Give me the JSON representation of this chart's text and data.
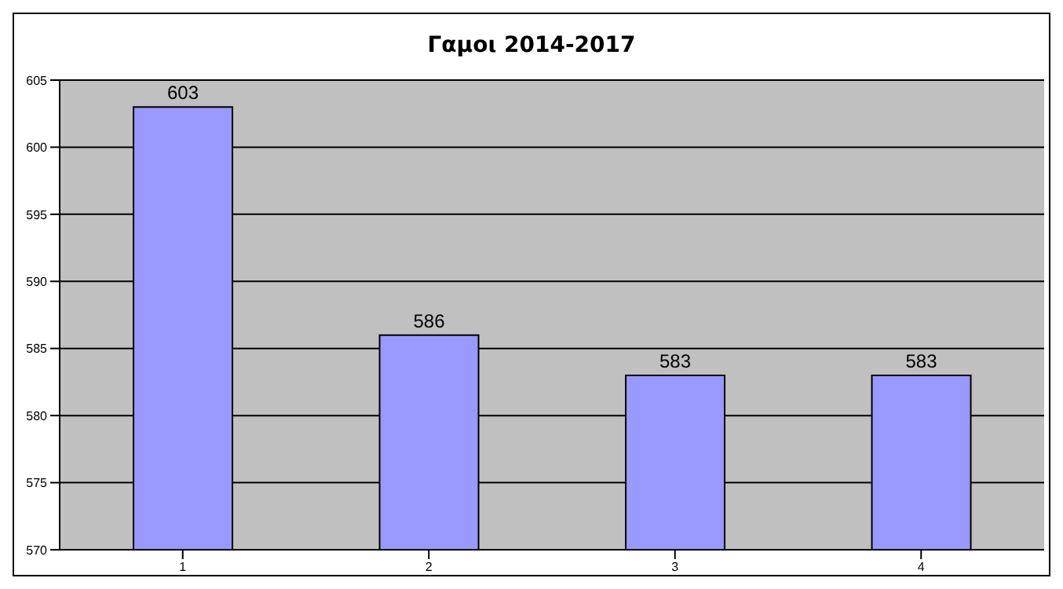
{
  "chart_data": {
    "type": "bar",
    "title": "Γαμοι 2014-2017",
    "categories": [
      "1",
      "2",
      "3",
      "4"
    ],
    "values": [
      603,
      586,
      583,
      583
    ],
    "color": "#9999ff",
    "ylim": [
      570,
      605
    ],
    "yticks": [
      570,
      575,
      580,
      585,
      590,
      595,
      600,
      605
    ],
    "grid": "y",
    "data_labels": true
  }
}
